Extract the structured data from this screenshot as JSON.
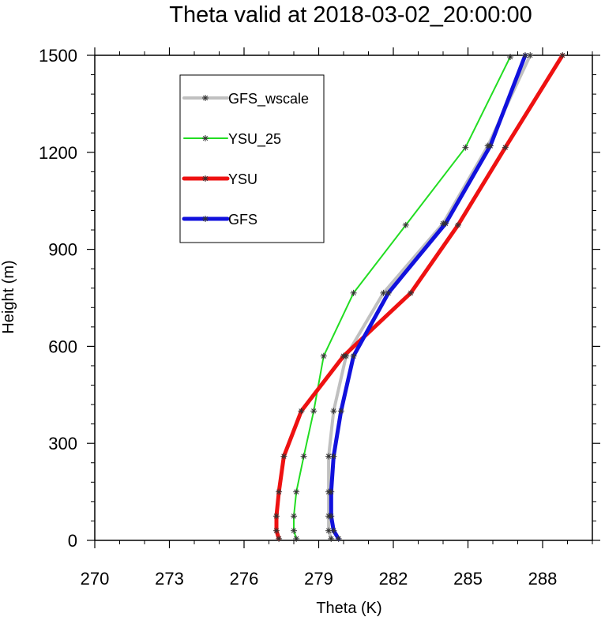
{
  "chart_data": {
    "type": "line",
    "title": "Theta valid at 2018-03-02_20:00:00",
    "xlabel": "Theta (K)",
    "ylabel": "Height (m)",
    "xlim": [
      270,
      290
    ],
    "ylim": [
      0,
      1500
    ],
    "xticks": [
      270,
      273,
      276,
      279,
      282,
      285,
      288
    ],
    "yticks": [
      0,
      300,
      600,
      900,
      1200,
      1500
    ],
    "legend_position": "top-left",
    "series": [
      {
        "name": "GFS_wscale",
        "color": "#c0c0c0",
        "width": 4,
        "x": [
          279.5,
          279.4,
          279.4,
          279.4,
          279.4,
          279.6,
          280.1,
          281.6,
          284.0,
          285.8,
          287.5
        ],
        "y": [
          5,
          30,
          75,
          150,
          260,
          400,
          570,
          765,
          980,
          1220,
          1500
        ]
      },
      {
        "name": "YSU_25",
        "color": "#22dd22",
        "width": 2,
        "x": [
          278.1,
          278.0,
          278.0,
          278.1,
          278.4,
          278.8,
          279.2,
          280.4,
          282.5,
          284.9,
          286.7
        ],
        "y": [
          5,
          30,
          75,
          150,
          260,
          400,
          570,
          765,
          975,
          1215,
          1495
        ]
      },
      {
        "name": "YSU",
        "color": "#ee1111",
        "width": 5,
        "x": [
          277.4,
          277.3,
          277.3,
          277.4,
          277.6,
          278.3,
          280.0,
          282.7,
          284.6,
          286.5,
          288.8
        ],
        "y": [
          5,
          30,
          75,
          150,
          260,
          400,
          570,
          765,
          975,
          1215,
          1500
        ]
      },
      {
        "name": "GFS",
        "color": "#1111dd",
        "width": 5,
        "x": [
          279.8,
          279.6,
          279.5,
          279.5,
          279.6,
          279.9,
          280.4,
          281.8,
          284.1,
          285.9,
          287.3
        ],
        "y": [
          5,
          30,
          75,
          150,
          260,
          400,
          570,
          765,
          980,
          1220,
          1500
        ]
      }
    ]
  }
}
